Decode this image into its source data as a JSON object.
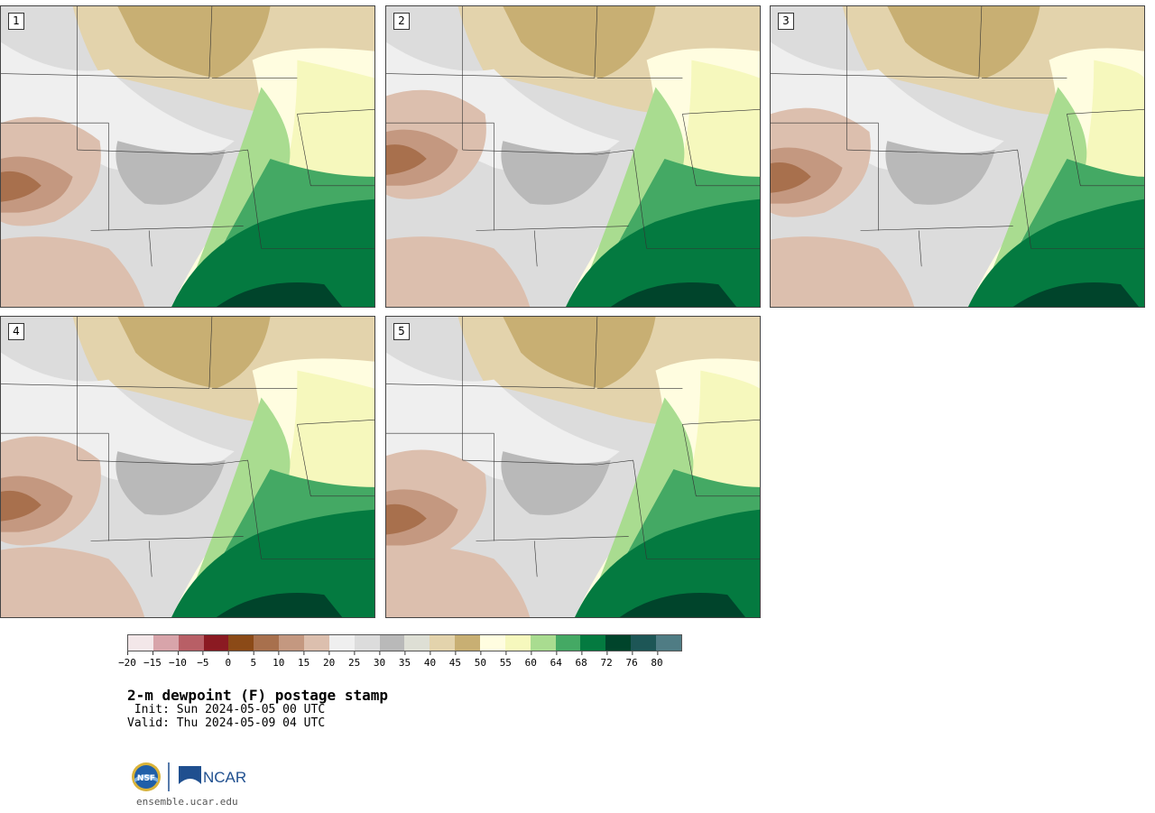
{
  "panels": [
    {
      "label": "1"
    },
    {
      "label": "2"
    },
    {
      "label": "3"
    },
    {
      "label": "4"
    },
    {
      "label": "5"
    }
  ],
  "colorbar": {
    "colors": [
      "#f3e7e9",
      "#d8a4aa",
      "#b85f66",
      "#8b1a22",
      "#8b4a17",
      "#a8704d",
      "#c49880",
      "#dcbfae",
      "#efefef",
      "#dcdcdc",
      "#b9b9b9",
      "#dedfd5",
      "#e3d3ac",
      "#c8af73",
      "#fffde0",
      "#f6f8bd",
      "#a9dc90",
      "#44a964",
      "#047a40",
      "#00442b",
      "#1d5656",
      "#4f7c84"
    ],
    "ticks": [
      "-20",
      "-15",
      "-10",
      "-5",
      "0",
      "5",
      "10",
      "15",
      "20",
      "25",
      "30",
      "35",
      "40",
      "45",
      "50",
      "55",
      "60",
      "64",
      "68",
      "72",
      "76",
      "80"
    ]
  },
  "title": "2-m dewpoint (F) postage stamp",
  "init": " Init: Sun 2024-05-05 00 UTC",
  "valid": "Valid: Thu 2024-05-09 04 UTC",
  "footer": {
    "site": "ensemble.ucar.edu",
    "logo_nsf": "NSF",
    "logo_ncar": "NCAR"
  }
}
